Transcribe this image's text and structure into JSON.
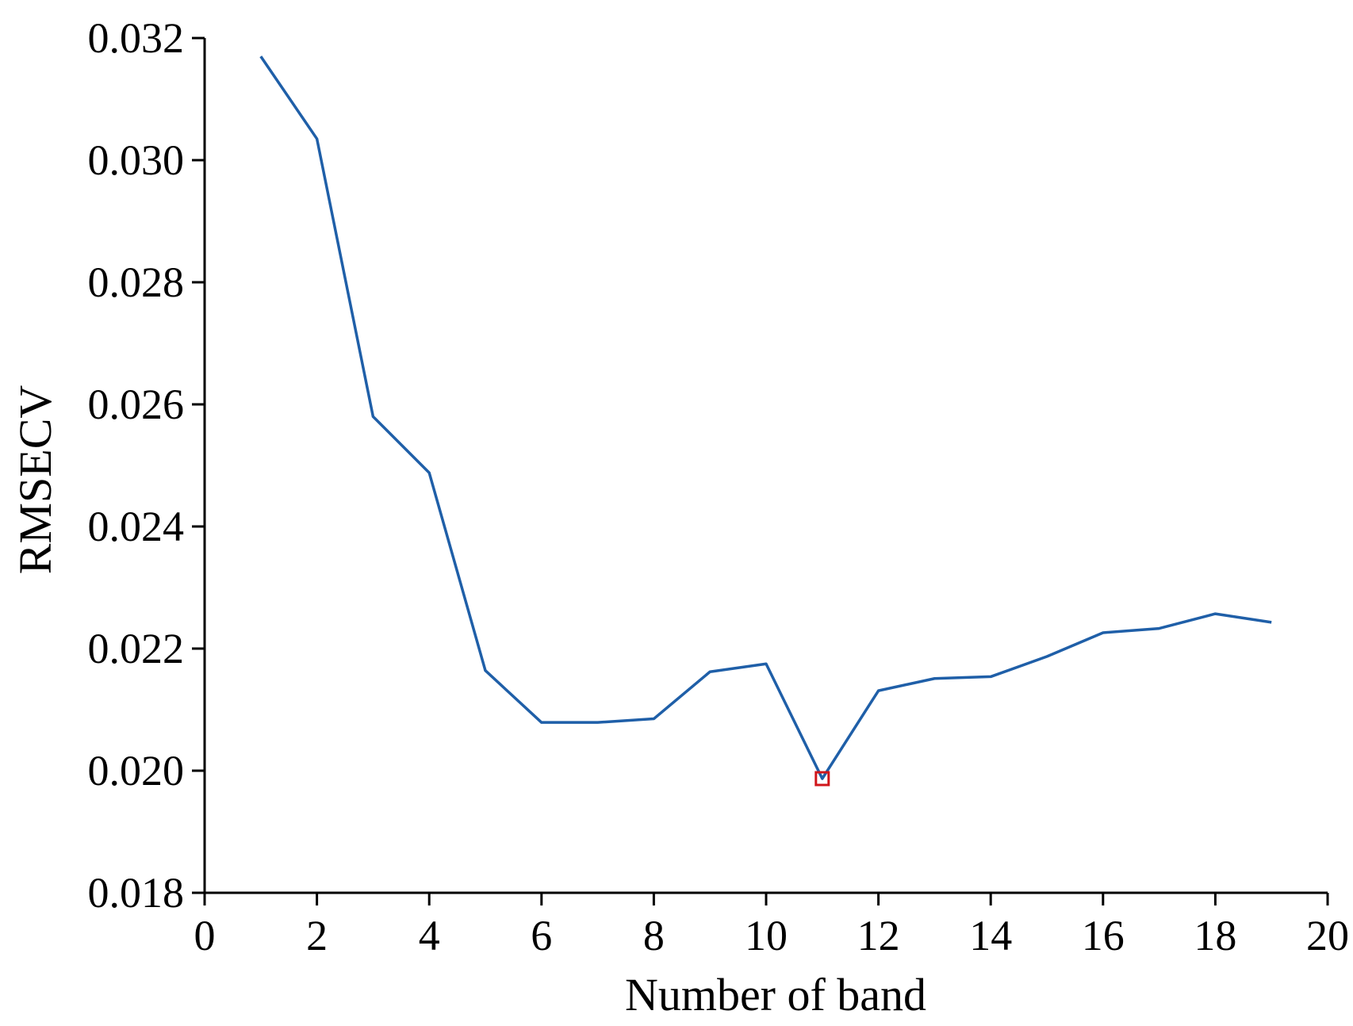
{
  "chart_data": {
    "type": "line",
    "title": "",
    "xlabel": "Number of band",
    "ylabel": "RMSECV",
    "xlim": [
      0,
      20
    ],
    "ylim": [
      0.018,
      0.032
    ],
    "xticks": [
      0,
      2,
      4,
      6,
      8,
      10,
      12,
      14,
      16,
      18,
      20
    ],
    "yticks": [
      0.018,
      0.02,
      0.022,
      0.024,
      0.026,
      0.028,
      0.03,
      0.032
    ],
    "xtick_labels": [
      "0",
      "2",
      "4",
      "6",
      "8",
      "10",
      "12",
      "14",
      "16",
      "18",
      "20"
    ],
    "ytick_labels": [
      "0.018",
      "0.020",
      "0.022",
      "0.024",
      "0.026",
      "0.028",
      "0.030",
      "0.032"
    ],
    "grid": false,
    "series": [
      {
        "x": [
          1,
          2,
          3,
          4,
          5,
          6,
          7,
          8,
          9,
          10,
          11,
          12,
          13,
          14,
          15,
          16,
          17,
          18,
          19
        ],
        "values": [
          0.0317,
          0.03035,
          0.0258,
          0.02488,
          0.02164,
          0.02079,
          0.02079,
          0.02085,
          0.02162,
          0.02175,
          0.01987,
          0.02131,
          0.02151,
          0.02154,
          0.02187,
          0.02226,
          0.02233,
          0.02257,
          0.02243
        ],
        "color": "#1f5fa8"
      }
    ],
    "highlight": {
      "x": 11,
      "y": 0.01987,
      "shape": "square",
      "color": "#d0161b"
    }
  }
}
